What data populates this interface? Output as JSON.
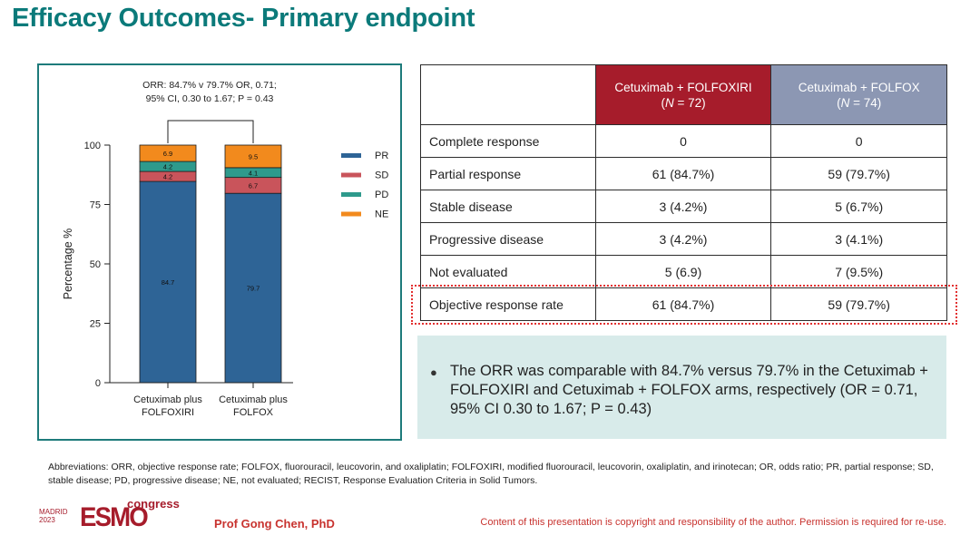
{
  "title": "Efficacy Outcomes- Primary endpoint",
  "chart_annotation": {
    "line1": "ORR: 84.7% v 79.7% OR, 0.71;",
    "line2": "95% CI, 0.30 to 1.67; P = 0.43"
  },
  "chart_data": {
    "type": "bar",
    "stacked": true,
    "ylabel": "Percentage %",
    "ylim": [
      0,
      100
    ],
    "yticks": [
      "0",
      "25",
      "50",
      "75",
      "100"
    ],
    "categories": [
      "Cetuximab plus FOLFOXIRI",
      "Cetuximab plus FOLFOX"
    ],
    "category_lines": [
      [
        "Cetuximab plus",
        "FOLFOXIRI"
      ],
      [
        "Cetuximab plus",
        "FOLFOX"
      ]
    ],
    "series": [
      {
        "name": "PR",
        "color": "#2e6496",
        "values": [
          84.7,
          79.7
        ],
        "labels": [
          "84.7",
          "79.7"
        ]
      },
      {
        "name": "SD",
        "color": "#c9545b",
        "values": [
          4.2,
          6.7
        ],
        "labels": [
          "4.2",
          "6.7"
        ]
      },
      {
        "name": "PD",
        "color": "#2e9a8c",
        "values": [
          4.2,
          4.1
        ],
        "labels": [
          "4.2",
          "4.1"
        ]
      },
      {
        "name": "NE",
        "color": "#f28a1d",
        "values": [
          6.9,
          9.5
        ],
        "labels": [
          "6.9",
          "9.5"
        ]
      }
    ],
    "legend_position": "right",
    "grid": false
  },
  "table": {
    "arm1": {
      "name": "Cetuximab + FOLFOXIRI",
      "n_prefix": "(",
      "n_label": "N",
      "n_value": " = 72)",
      "color": "#a61c2b"
    },
    "arm2": {
      "name": "Cetuximab + FOLFOX",
      "n_prefix": "(",
      "n_label": "N",
      "n_value": " = 74)",
      "color": "#8c97b3"
    },
    "rows": [
      {
        "label": "Complete response",
        "arm1": "0",
        "arm2": "0"
      },
      {
        "label": "Partial response",
        "arm1": "61 (84.7%)",
        "arm2": "59 (79.7%)"
      },
      {
        "label": "Stable disease",
        "arm1": "3 (4.2%)",
        "arm2": "5 (6.7%)"
      },
      {
        "label": "Progressive disease",
        "arm1": "3 (4.2%)",
        "arm2": "3 (4.1%)"
      },
      {
        "label": "Not evaluated",
        "arm1": "5 (6.9)",
        "arm2": "7 (9.5%)"
      },
      {
        "label": "Objective response rate",
        "arm1": "61 (84.7%)",
        "arm2": "59 (79.7%)"
      }
    ]
  },
  "summary": "The ORR was comparable with 84.7% versus 79.7% in the Cetuximab + FOLFOXIRI and Cetuximab + FOLFOX arms, respectively (OR = 0.71, 95% CI 0.30 to 1.67; P = 0.43)",
  "abbreviations": "Abbreviations: ORR, objective response rate; FOLFOX, fluorouracil, leucovorin, and oxaliplatin; FOLFOXIRI, modified fluorouracil, leucovorin, oxaliplatin, and irinotecan; OR, odds ratio; PR, partial response; SD, stable disease; PD, progressive disease; NE, not evaluated; RECIST, Response Evaluation Criteria in Solid Tumors.",
  "logo": {
    "city": "MADRID",
    "year": "2023",
    "brand": "ESMO",
    "suffix": "congress"
  },
  "presenter": "Prof Gong Chen, PhD",
  "copyright": "Content of this presentation is copyright and responsibility of the author. Permission is required for re-use."
}
